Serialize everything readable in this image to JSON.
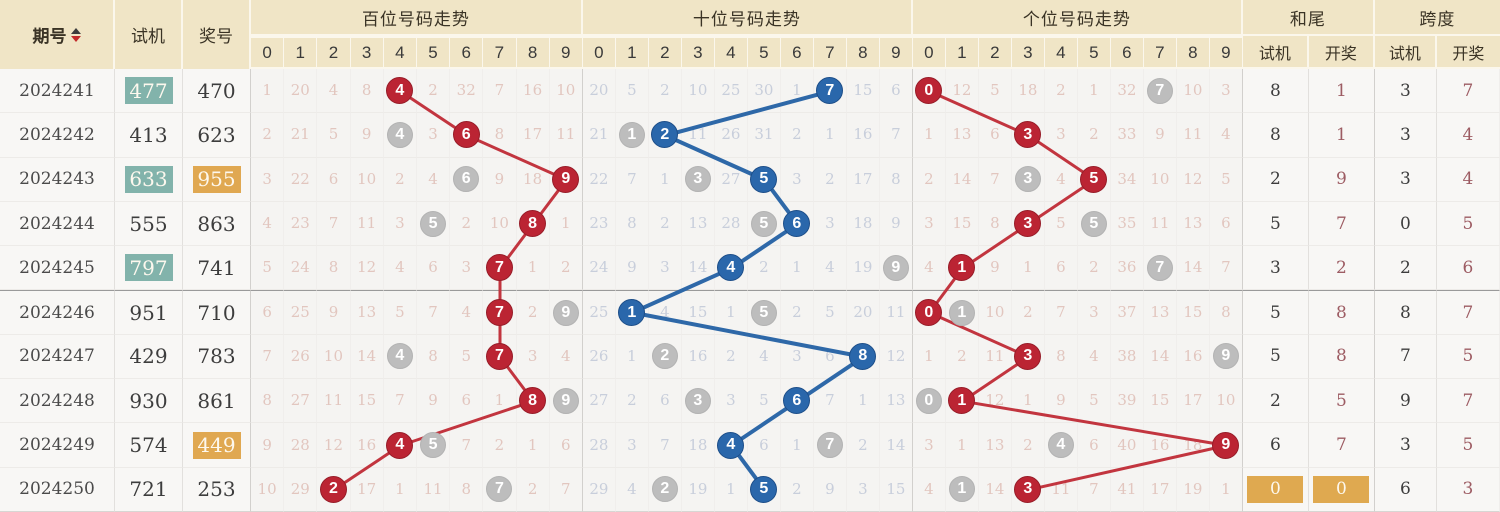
{
  "header": {
    "col_period": "期号",
    "col_test": "试机",
    "col_prize": "奖号",
    "sections": [
      "百位号码走势",
      "十位号码走势",
      "个位号码走势"
    ],
    "digits": [
      "0",
      "1",
      "2",
      "3",
      "4",
      "5",
      "6",
      "7",
      "8",
      "9"
    ],
    "col_hewei": "和尾",
    "col_kuadu": "跨度",
    "sub_test": "试机",
    "sub_open": "开奖"
  },
  "colors": {
    "header_bg": "#f0e5c6",
    "red_ball": "#bb2433",
    "blue_ball": "#2a67ab",
    "gray_ball": "#bdbdbd",
    "red_line": "#c2353f",
    "blue_line": "#2e68a8",
    "miss_red_text": "#e2c6bf",
    "miss_blue_text": "#c8cedb",
    "teal_highlight": "#82b3ab",
    "orange_highlight": "#e0a851",
    "open_text": "#9d5c63"
  },
  "rows": [
    {
      "period": "2024241",
      "test": "477",
      "test_hl": true,
      "prize": "470",
      "prize_hl": false,
      "bai": {
        "win": 4,
        "test": 4,
        "miss": [
          "1",
          "20",
          "4",
          "8",
          "",
          "2",
          "32",
          "7",
          "16",
          "10"
        ]
      },
      "shi": {
        "win": 7,
        "test": 7,
        "miss": [
          "20",
          "5",
          "2",
          "10",
          "25",
          "30",
          "1",
          "",
          "15",
          "6"
        ]
      },
      "ge": {
        "win": 0,
        "test": 7,
        "miss": [
          "",
          "12",
          "5",
          "18",
          "2",
          "1",
          "32",
          "",
          "10",
          "3"
        ]
      },
      "hewei": {
        "test": "8",
        "open": "1",
        "hl": false
      },
      "kuadu": {
        "test": "3",
        "open": "7"
      }
    },
    {
      "period": "2024242",
      "test": "413",
      "test_hl": false,
      "prize": "623",
      "prize_hl": false,
      "bai": {
        "win": 6,
        "test": 4,
        "miss": [
          "2",
          "21",
          "5",
          "9",
          "",
          "3",
          "",
          "8",
          "17",
          "11"
        ]
      },
      "shi": {
        "win": 2,
        "test": 1,
        "miss": [
          "21",
          "",
          "",
          "11",
          "26",
          "31",
          "2",
          "1",
          "16",
          "7"
        ]
      },
      "ge": {
        "win": 3,
        "test": 3,
        "miss": [
          "1",
          "13",
          "6",
          "",
          "3",
          "2",
          "33",
          "9",
          "11",
          "4"
        ]
      },
      "hewei": {
        "test": "8",
        "open": "1",
        "hl": false
      },
      "kuadu": {
        "test": "3",
        "open": "4"
      }
    },
    {
      "period": "2024243",
      "test": "633",
      "test_hl": true,
      "prize": "955",
      "prize_hl": true,
      "bai": {
        "win": 9,
        "test": 6,
        "miss": [
          "3",
          "22",
          "6",
          "10",
          "2",
          "4",
          "",
          "9",
          "18",
          ""
        ]
      },
      "shi": {
        "win": 5,
        "test": 3,
        "miss": [
          "22",
          "7",
          "1",
          "",
          "27",
          "",
          "3",
          "2",
          "17",
          "8"
        ]
      },
      "ge": {
        "win": 5,
        "test": 3,
        "miss": [
          "2",
          "14",
          "7",
          "",
          "4",
          "",
          "34",
          "10",
          "12",
          "5"
        ]
      },
      "hewei": {
        "test": "2",
        "open": "9",
        "hl": false
      },
      "kuadu": {
        "test": "3",
        "open": "4"
      }
    },
    {
      "period": "2024244",
      "test": "555",
      "test_hl": false,
      "prize": "863",
      "prize_hl": false,
      "bai": {
        "win": 8,
        "test": 5,
        "miss": [
          "4",
          "23",
          "7",
          "11",
          "3",
          "",
          "2",
          "10",
          "",
          "1"
        ]
      },
      "shi": {
        "win": 6,
        "test": 5,
        "miss": [
          "23",
          "8",
          "2",
          "13",
          "28",
          "",
          "",
          "3",
          "18",
          "9"
        ]
      },
      "ge": {
        "win": 3,
        "test": 5,
        "miss": [
          "3",
          "15",
          "8",
          "",
          "5",
          "",
          "35",
          "11",
          "13",
          "6"
        ]
      },
      "hewei": {
        "test": "5",
        "open": "7",
        "hl": false
      },
      "kuadu": {
        "test": "0",
        "open": "5"
      }
    },
    {
      "period": "2024245",
      "test": "797",
      "test_hl": true,
      "prize": "741",
      "prize_hl": false,
      "bai": {
        "win": 7,
        "test": 7,
        "miss": [
          "5",
          "24",
          "8",
          "12",
          "4",
          "6",
          "3",
          "",
          "1",
          "2"
        ]
      },
      "shi": {
        "win": 4,
        "test": 9,
        "miss": [
          "24",
          "9",
          "3",
          "14",
          "",
          "2",
          "1",
          "4",
          "19",
          ""
        ]
      },
      "ge": {
        "win": 1,
        "test": 7,
        "miss": [
          "4",
          "",
          "9",
          "1",
          "6",
          "2",
          "36",
          "",
          "14",
          "7"
        ]
      },
      "hewei": {
        "test": "3",
        "open": "2",
        "hl": false
      },
      "kuadu": {
        "test": "2",
        "open": "6"
      }
    },
    {
      "period": "2024246",
      "test": "951",
      "test_hl": false,
      "prize": "710",
      "prize_hl": false,
      "bai": {
        "win": 7,
        "test": 9,
        "miss": [
          "6",
          "25",
          "9",
          "13",
          "5",
          "7",
          "4",
          "",
          "2",
          ""
        ]
      },
      "shi": {
        "win": 1,
        "test": 5,
        "miss": [
          "25",
          "",
          "4",
          "15",
          "1",
          "",
          "2",
          "5",
          "20",
          "11"
        ]
      },
      "ge": {
        "win": 0,
        "test": 1,
        "miss": [
          "",
          "",
          "10",
          "2",
          "7",
          "3",
          "37",
          "13",
          "15",
          "8"
        ]
      },
      "hewei": {
        "test": "5",
        "open": "8",
        "hl": false
      },
      "kuadu": {
        "test": "8",
        "open": "7"
      }
    },
    {
      "period": "2024247",
      "test": "429",
      "test_hl": false,
      "prize": "783",
      "prize_hl": false,
      "bai": {
        "win": 7,
        "test": 4,
        "miss": [
          "7",
          "26",
          "10",
          "14",
          "",
          "8",
          "5",
          "",
          "3",
          "4"
        ]
      },
      "shi": {
        "win": 8,
        "test": 2,
        "miss": [
          "26",
          "1",
          "",
          "16",
          "2",
          "4",
          "3",
          "6",
          "",
          "12"
        ]
      },
      "ge": {
        "win": 3,
        "test": 9,
        "miss": [
          "1",
          "2",
          "11",
          "",
          "8",
          "4",
          "38",
          "14",
          "16",
          ""
        ]
      },
      "hewei": {
        "test": "5",
        "open": "8",
        "hl": false
      },
      "kuadu": {
        "test": "7",
        "open": "5"
      }
    },
    {
      "period": "2024248",
      "test": "930",
      "test_hl": false,
      "prize": "861",
      "prize_hl": false,
      "bai": {
        "win": 8,
        "test": 9,
        "miss": [
          "8",
          "27",
          "11",
          "15",
          "7",
          "9",
          "6",
          "1",
          "",
          ""
        ]
      },
      "shi": {
        "win": 6,
        "test": 3,
        "miss": [
          "27",
          "2",
          "6",
          "",
          "3",
          "5",
          "",
          "7",
          "1",
          "13"
        ]
      },
      "ge": {
        "win": 1,
        "test": 0,
        "miss": [
          "",
          "",
          "12",
          "1",
          "9",
          "5",
          "39",
          "15",
          "17",
          "10"
        ]
      },
      "hewei": {
        "test": "2",
        "open": "5",
        "hl": false
      },
      "kuadu": {
        "test": "9",
        "open": "7"
      }
    },
    {
      "period": "2024249",
      "test": "574",
      "test_hl": false,
      "prize": "449",
      "prize_hl": true,
      "bai": {
        "win": 4,
        "test": 5,
        "miss": [
          "9",
          "28",
          "12",
          "16",
          "",
          "",
          "7",
          "2",
          "1",
          "6"
        ]
      },
      "shi": {
        "win": 4,
        "test": 7,
        "miss": [
          "28",
          "3",
          "7",
          "18",
          "",
          "6",
          "1",
          "",
          "2",
          "14"
        ]
      },
      "ge": {
        "win": 9,
        "test": 4,
        "miss": [
          "3",
          "1",
          "13",
          "2",
          "",
          "6",
          "40",
          "16",
          "18",
          ""
        ]
      },
      "hewei": {
        "test": "6",
        "open": "7",
        "hl": false
      },
      "kuadu": {
        "test": "3",
        "open": "5"
      }
    },
    {
      "period": "2024250",
      "test": "721",
      "test_hl": false,
      "prize": "253",
      "prize_hl": false,
      "bai": {
        "win": 2,
        "test": 7,
        "miss": [
          "10",
          "29",
          "",
          "17",
          "1",
          "11",
          "8",
          "",
          "2",
          "7"
        ]
      },
      "shi": {
        "win": 5,
        "test": 2,
        "miss": [
          "29",
          "4",
          "",
          "19",
          "1",
          "",
          "2",
          "9",
          "3",
          "15"
        ]
      },
      "ge": {
        "win": 3,
        "test": 1,
        "miss": [
          "4",
          "",
          "14",
          "",
          "11",
          "7",
          "41",
          "17",
          "19",
          "1"
        ]
      },
      "hewei": {
        "test": "0",
        "open": "0",
        "hl": true
      },
      "kuadu": {
        "test": "6",
        "open": "3"
      }
    }
  ]
}
